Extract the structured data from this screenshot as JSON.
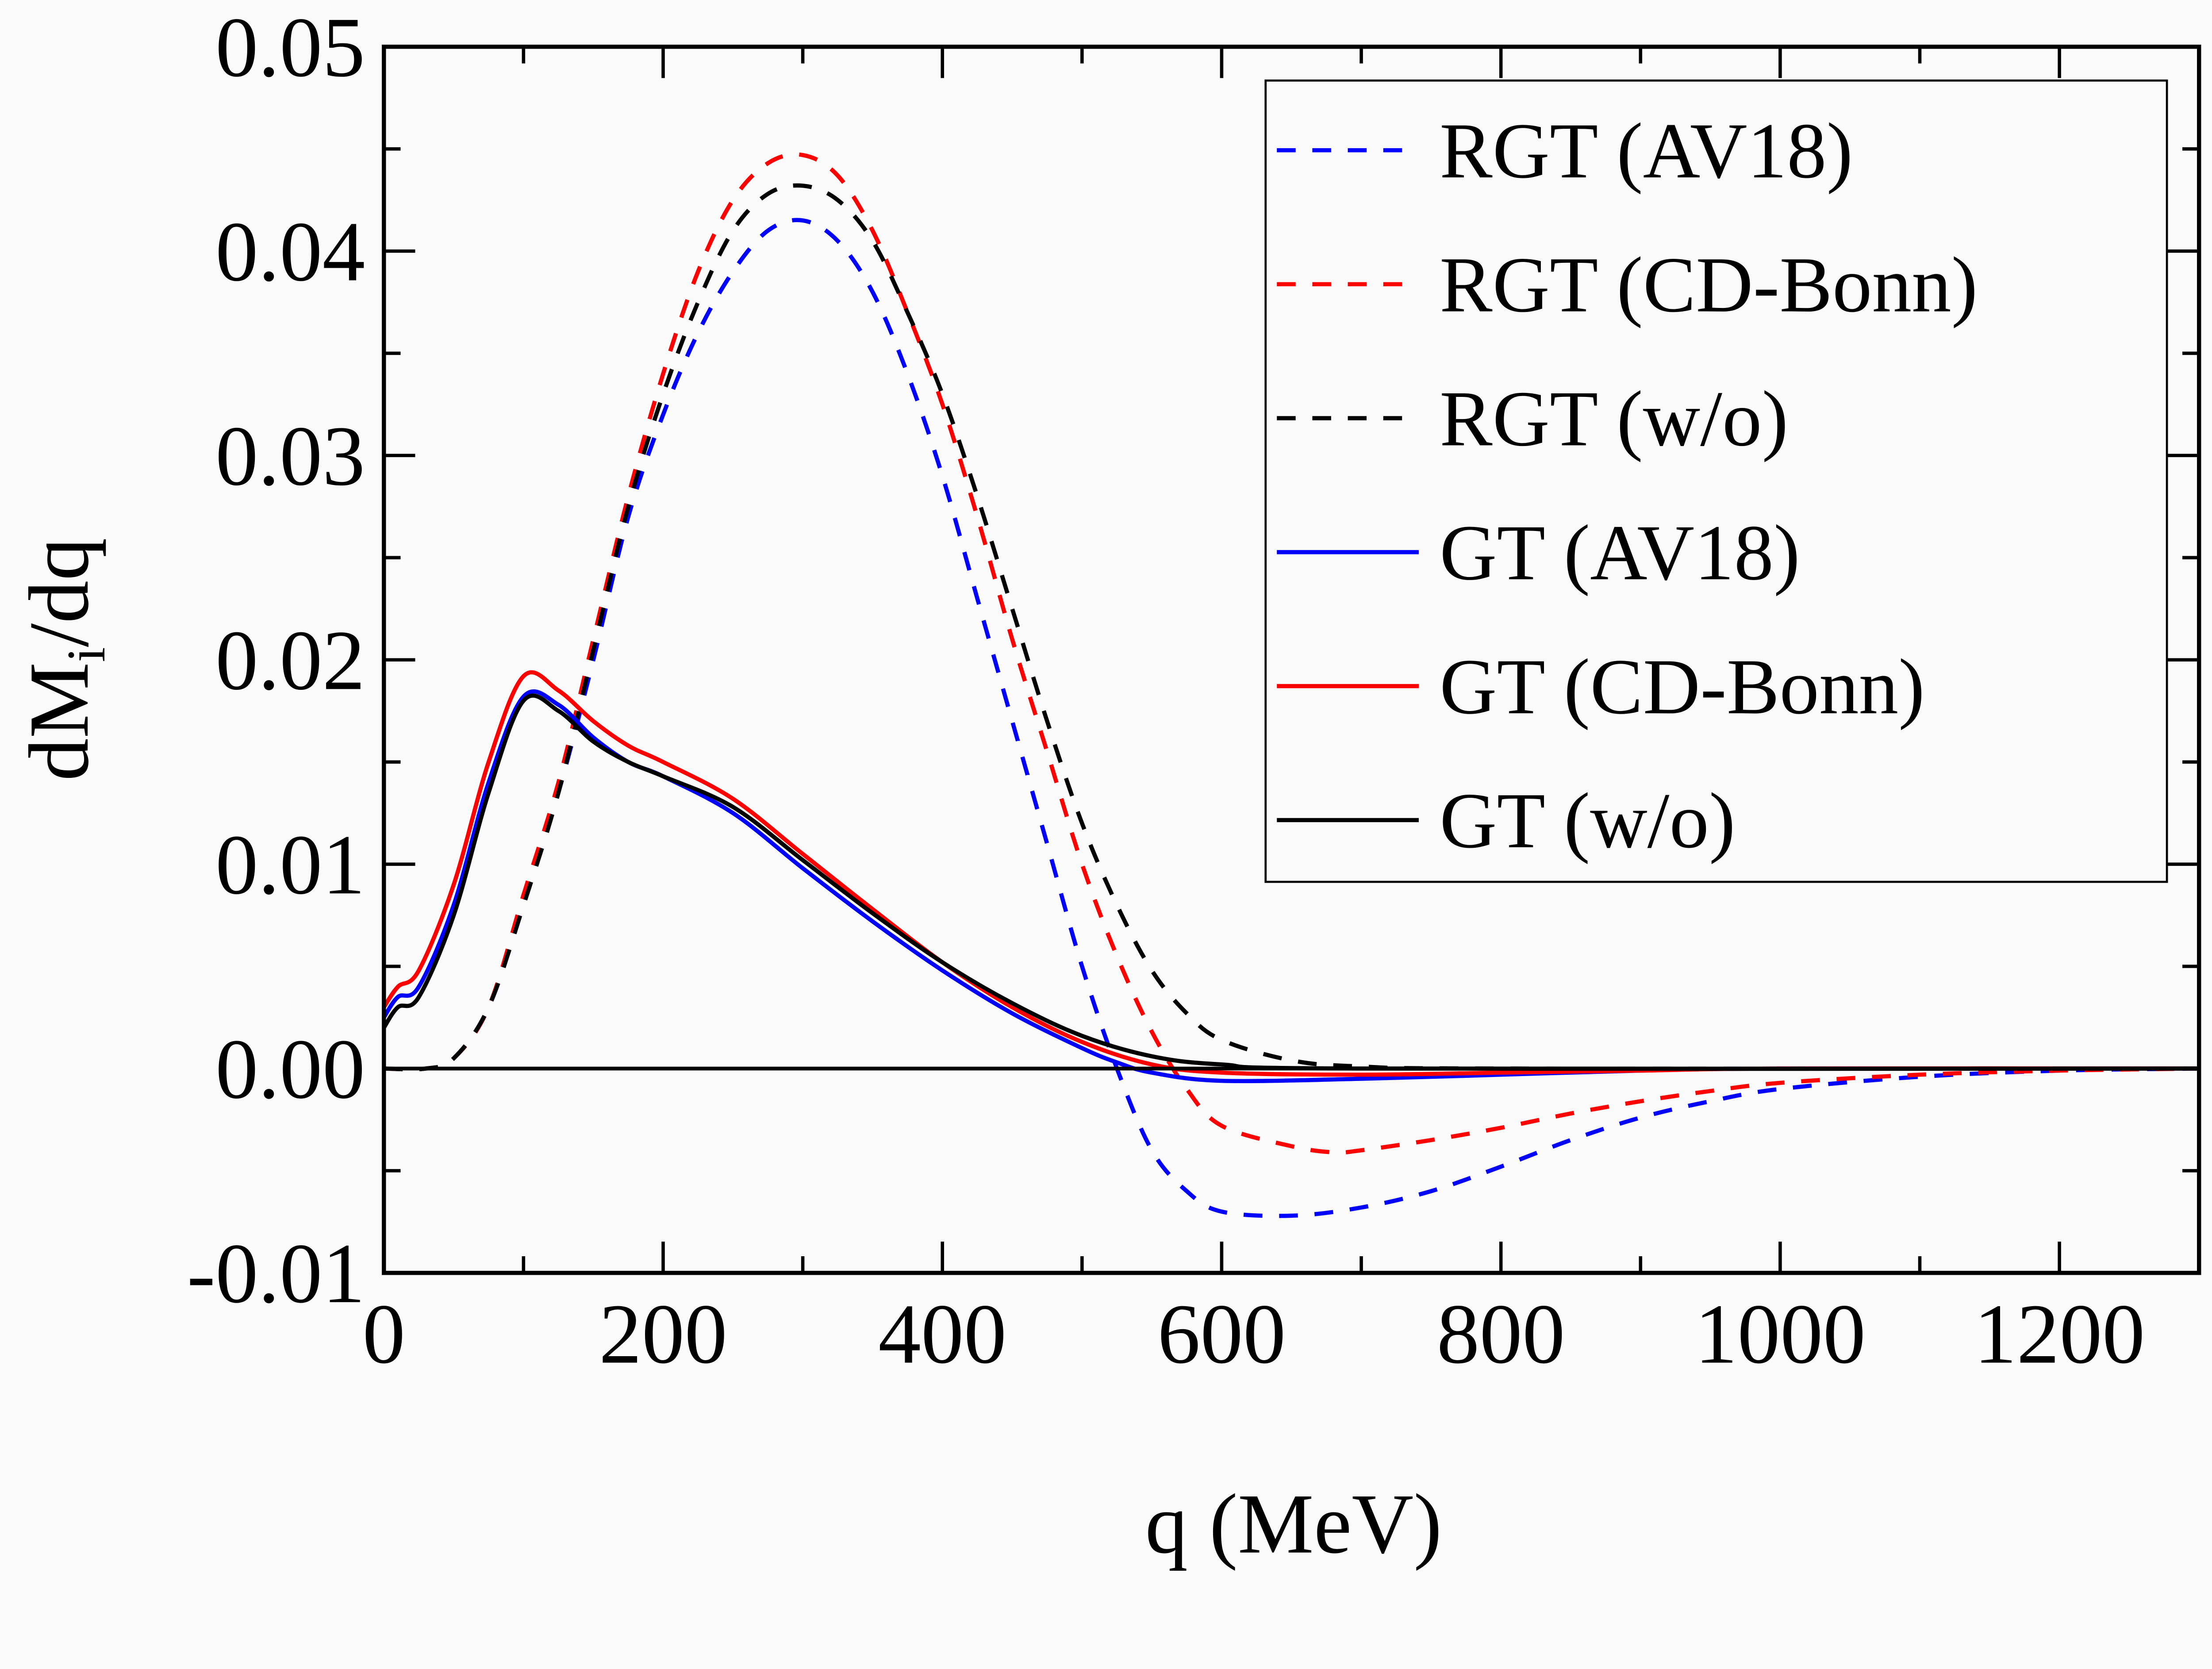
{
  "chart_data": {
    "type": "line",
    "title": "",
    "xlabel": "q (MeV)",
    "ylabel": "dM",
    "ylabel_subscript": "i",
    "ylabel_suffix": "/dq",
    "xlim": [
      0,
      1300
    ],
    "ylim": [
      -0.01,
      0.05
    ],
    "xticks": [
      0,
      200,
      400,
      600,
      800,
      1000,
      1200
    ],
    "xtick_labels": [
      "0",
      "200",
      "400",
      "600",
      "800",
      "1000",
      "1200"
    ],
    "yticks": [
      -0.01,
      0.0,
      0.01,
      0.02,
      0.03,
      0.04,
      0.05
    ],
    "ytick_labels": [
      "-0.01",
      "0.00",
      "0.01",
      "0.02",
      "0.03",
      "0.04",
      "0.05"
    ],
    "grid": false,
    "zero_line": true,
    "legend_position": "top-right",
    "series": [
      {
        "name": "RGT (AV18)",
        "color": "#0000ff",
        "dash": "dashed",
        "x": [
          0,
          30,
          50,
          75,
          100,
          125,
          150,
          175,
          200,
          225,
          250,
          275,
          300,
          325,
          350,
          375,
          400,
          425,
          450,
          475,
          500,
          525,
          550,
          575,
          600,
          650,
          700,
          750,
          800,
          850,
          900,
          950,
          1000,
          1100,
          1200,
          1300
        ],
        "y": [
          0,
          0,
          0.0005,
          0.003,
          0.008,
          0.0135,
          0.02,
          0.027,
          0.032,
          0.036,
          0.039,
          0.041,
          0.0415,
          0.0405,
          0.038,
          0.034,
          0.029,
          0.023,
          0.017,
          0.011,
          0.005,
          0.0,
          -0.004,
          -0.006,
          -0.007,
          -0.0072,
          -0.0068,
          -0.006,
          -0.0048,
          -0.0035,
          -0.0024,
          -0.0016,
          -0.001,
          -0.0004,
          -0.0001,
          0
        ]
      },
      {
        "name": "RGT (CD-Bonn)",
        "color": "#ff0000",
        "dash": "dashed",
        "x": [
          0,
          30,
          50,
          75,
          100,
          125,
          150,
          175,
          200,
          225,
          250,
          275,
          300,
          325,
          350,
          375,
          400,
          425,
          450,
          475,
          500,
          525,
          550,
          575,
          600,
          650,
          680,
          700,
          750,
          800,
          850,
          900,
          950,
          1000,
          1100,
          1200,
          1300
        ],
        "y": [
          0,
          0,
          0.0005,
          0.003,
          0.0085,
          0.014,
          0.021,
          0.028,
          0.034,
          0.039,
          0.0425,
          0.0443,
          0.0447,
          0.0437,
          0.041,
          0.037,
          0.0325,
          0.027,
          0.021,
          0.0155,
          0.01,
          0.0055,
          0.0018,
          -0.001,
          -0.0028,
          -0.0038,
          -0.0041,
          -0.004,
          -0.0035,
          -0.0029,
          -0.0022,
          -0.0016,
          -0.0011,
          -0.0007,
          -0.0003,
          -0.0001,
          0
        ]
      },
      {
        "name": "RGT (w/o)",
        "color": "#000000",
        "dash": "dashed",
        "x": [
          0,
          30,
          50,
          75,
          100,
          125,
          150,
          175,
          200,
          225,
          250,
          275,
          300,
          325,
          350,
          375,
          400,
          425,
          450,
          475,
          500,
          525,
          550,
          575,
          600,
          650,
          700,
          800,
          1300
        ],
        "y": [
          0,
          0,
          0.0005,
          0.003,
          0.008,
          0.0135,
          0.0205,
          0.0275,
          0.033,
          0.0375,
          0.041,
          0.0428,
          0.0432,
          0.0425,
          0.0405,
          0.037,
          0.033,
          0.028,
          0.0225,
          0.017,
          0.012,
          0.008,
          0.0048,
          0.0027,
          0.0014,
          0.0004,
          0.0001,
          0,
          0
        ]
      },
      {
        "name": "GT (AV18)",
        "color": "#0000ff",
        "dash": "solid",
        "x": [
          0,
          10,
          25,
          50,
          75,
          100,
          125,
          150,
          175,
          200,
          250,
          300,
          350,
          400,
          450,
          500,
          525,
          550,
          600,
          700,
          800,
          900,
          1000,
          1300
        ],
        "y": [
          0.0025,
          0.0035,
          0.004,
          0.008,
          0.014,
          0.0182,
          0.0178,
          0.0162,
          0.015,
          0.0143,
          0.0125,
          0.0098,
          0.0072,
          0.0048,
          0.0027,
          0.001,
          0.0003,
          -0.0002,
          -0.0006,
          -0.0005,
          -0.0003,
          -0.0001,
          0,
          0
        ]
      },
      {
        "name": "GT (CD-Bonn)",
        "color": "#ff0000",
        "dash": "solid",
        "x": [
          0,
          10,
          25,
          50,
          75,
          100,
          125,
          150,
          175,
          200,
          250,
          300,
          350,
          400,
          450,
          500,
          550,
          600,
          700,
          800,
          900,
          1000,
          1300
        ],
        "y": [
          0.003,
          0.004,
          0.0048,
          0.009,
          0.015,
          0.0192,
          0.0185,
          0.017,
          0.0158,
          0.015,
          0.0132,
          0.0105,
          0.0078,
          0.0052,
          0.003,
          0.0013,
          0.0002,
          -0.0002,
          -0.0003,
          -0.0002,
          -0.0001,
          0,
          0
        ]
      },
      {
        "name": "GT (w/o)",
        "color": "#000000",
        "dash": "solid",
        "x": [
          0,
          10,
          25,
          50,
          75,
          100,
          125,
          150,
          175,
          200,
          250,
          300,
          350,
          400,
          450,
          500,
          550,
          600,
          700,
          1300
        ],
        "y": [
          0.002,
          0.003,
          0.0035,
          0.0075,
          0.0135,
          0.018,
          0.0175,
          0.016,
          0.015,
          0.0143,
          0.0128,
          0.0102,
          0.0076,
          0.0052,
          0.0032,
          0.0016,
          0.0006,
          0.0002,
          0,
          0
        ]
      }
    ]
  }
}
